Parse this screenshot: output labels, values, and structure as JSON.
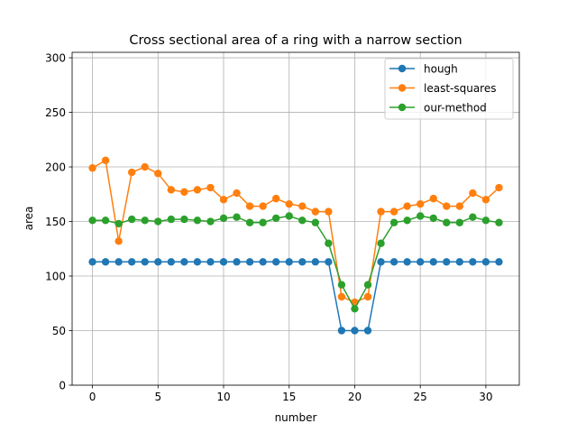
{
  "chart_data": {
    "type": "line",
    "title": "Cross sectional area of a ring with a narrow section",
    "xlabel": "number",
    "ylabel": "area",
    "xlim": [
      -1.55,
      32.55
    ],
    "ylim": [
      0,
      305
    ],
    "xticks": [
      0,
      5,
      10,
      15,
      20,
      25,
      30
    ],
    "yticks": [
      0,
      50,
      100,
      150,
      200,
      250,
      300
    ],
    "grid": true,
    "legend_position": "top-right",
    "x": [
      0,
      1,
      2,
      3,
      4,
      5,
      6,
      7,
      8,
      9,
      10,
      11,
      12,
      13,
      14,
      15,
      16,
      17,
      18,
      19,
      20,
      21,
      22,
      23,
      24,
      25,
      26,
      27,
      28,
      29,
      30,
      31
    ],
    "series": [
      {
        "name": "hough",
        "color": "#1f77b4",
        "marker": "circle",
        "values": [
          113,
          113,
          113,
          113,
          113,
          113,
          113,
          113,
          113,
          113,
          113,
          113,
          113,
          113,
          113,
          113,
          113,
          113,
          113,
          50,
          50,
          50,
          113,
          113,
          113,
          113,
          113,
          113,
          113,
          113,
          113,
          113
        ]
      },
      {
        "name": "least-squares",
        "color": "#ff7f0e",
        "marker": "circle",
        "values": [
          199,
          206,
          132,
          195,
          200,
          194,
          179,
          177,
          179,
          181,
          170,
          176,
          164,
          164,
          171,
          166,
          164,
          159,
          159,
          81,
          76,
          81,
          159,
          159,
          164,
          166,
          171,
          164,
          164,
          176,
          170,
          181
        ]
      },
      {
        "name": "our-method",
        "color": "#2ca02c",
        "marker": "circle",
        "values": [
          151,
          151,
          148,
          152,
          151,
          150,
          152,
          152,
          151,
          150,
          153,
          154,
          149,
          149,
          153,
          155,
          151,
          149,
          130,
          92,
          70,
          92,
          130,
          149,
          151,
          155,
          153,
          149,
          149,
          154,
          151,
          149
        ]
      }
    ]
  }
}
